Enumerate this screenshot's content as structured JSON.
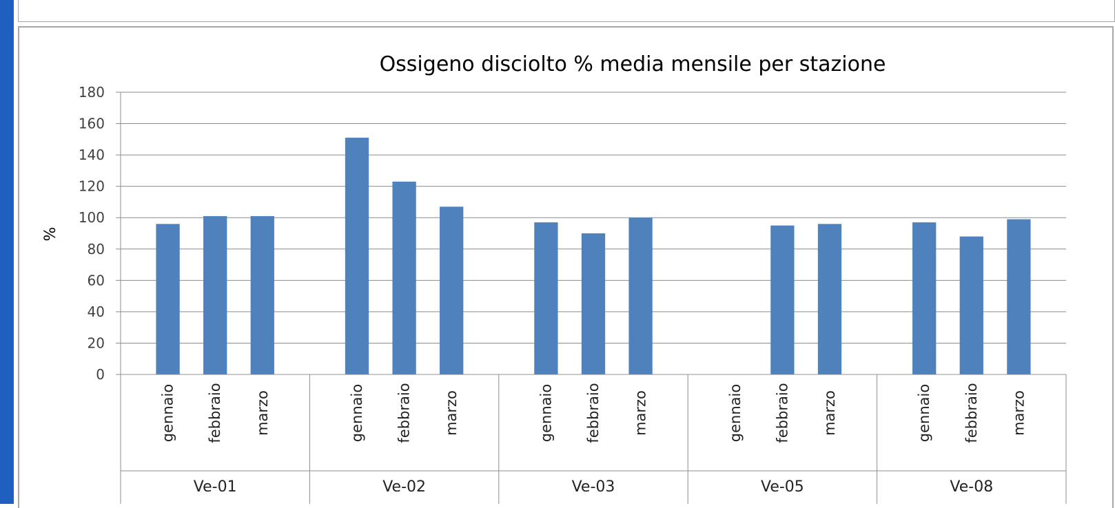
{
  "chart_data": {
    "type": "bar",
    "title": "Ossigeno disciolto % media mensile per stazione",
    "ylabel": "%",
    "xlabel": "",
    "ylim": [
      0,
      180
    ],
    "yticks": [
      0,
      20,
      40,
      60,
      80,
      100,
      120,
      140,
      160,
      180
    ],
    "grid": true,
    "legend": "none",
    "bar_color": "#4f81bd",
    "groups": [
      {
        "name": "Ve-01",
        "categories": [
          "gennaio",
          "febbraio",
          "marzo"
        ],
        "values": [
          96,
          101,
          101
        ]
      },
      {
        "name": "Ve-02",
        "categories": [
          "gennaio",
          "febbraio",
          "marzo"
        ],
        "values": [
          151,
          123,
          107
        ]
      },
      {
        "name": "Ve-03",
        "categories": [
          "gennaio",
          "febbraio",
          "marzo"
        ],
        "values": [
          97,
          90,
          100
        ]
      },
      {
        "name": "Ve-05",
        "categories": [
          "gennaio",
          "febbraio",
          "marzo"
        ],
        "values": [
          null,
          95,
          96
        ]
      },
      {
        "name": "Ve-08",
        "categories": [
          "gennaio",
          "febbraio",
          "marzo"
        ],
        "values": [
          97,
          88,
          99
        ]
      }
    ]
  }
}
